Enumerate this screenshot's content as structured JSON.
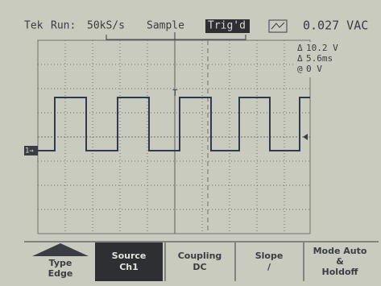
{
  "header": {
    "brand": "Tek",
    "mode": "Run:",
    "rate": "50kS/s",
    "acquisition": "Sample",
    "trigger_state": "Trig'd",
    "measurement": "0.027 VAC"
  },
  "readouts": [
    {
      "symbol": "Δ",
      "value": "10.2 V"
    },
    {
      "symbol": "Δ",
      "value": "5.6ms"
    },
    {
      "symbol": "@",
      "value": "0 V"
    }
  ],
  "markers": {
    "channel": "1→",
    "trigger": "T"
  },
  "menu": [
    {
      "label": "Type",
      "value": "Edge"
    },
    {
      "label": "Source",
      "value": "Ch1"
    },
    {
      "label": "Coupling",
      "value": "DC"
    },
    {
      "label": "Slope",
      "value": "/"
    },
    {
      "label": "Mode Auto",
      "value": "&"
    }
  ],
  "menu_extra": "Holdoff"
}
